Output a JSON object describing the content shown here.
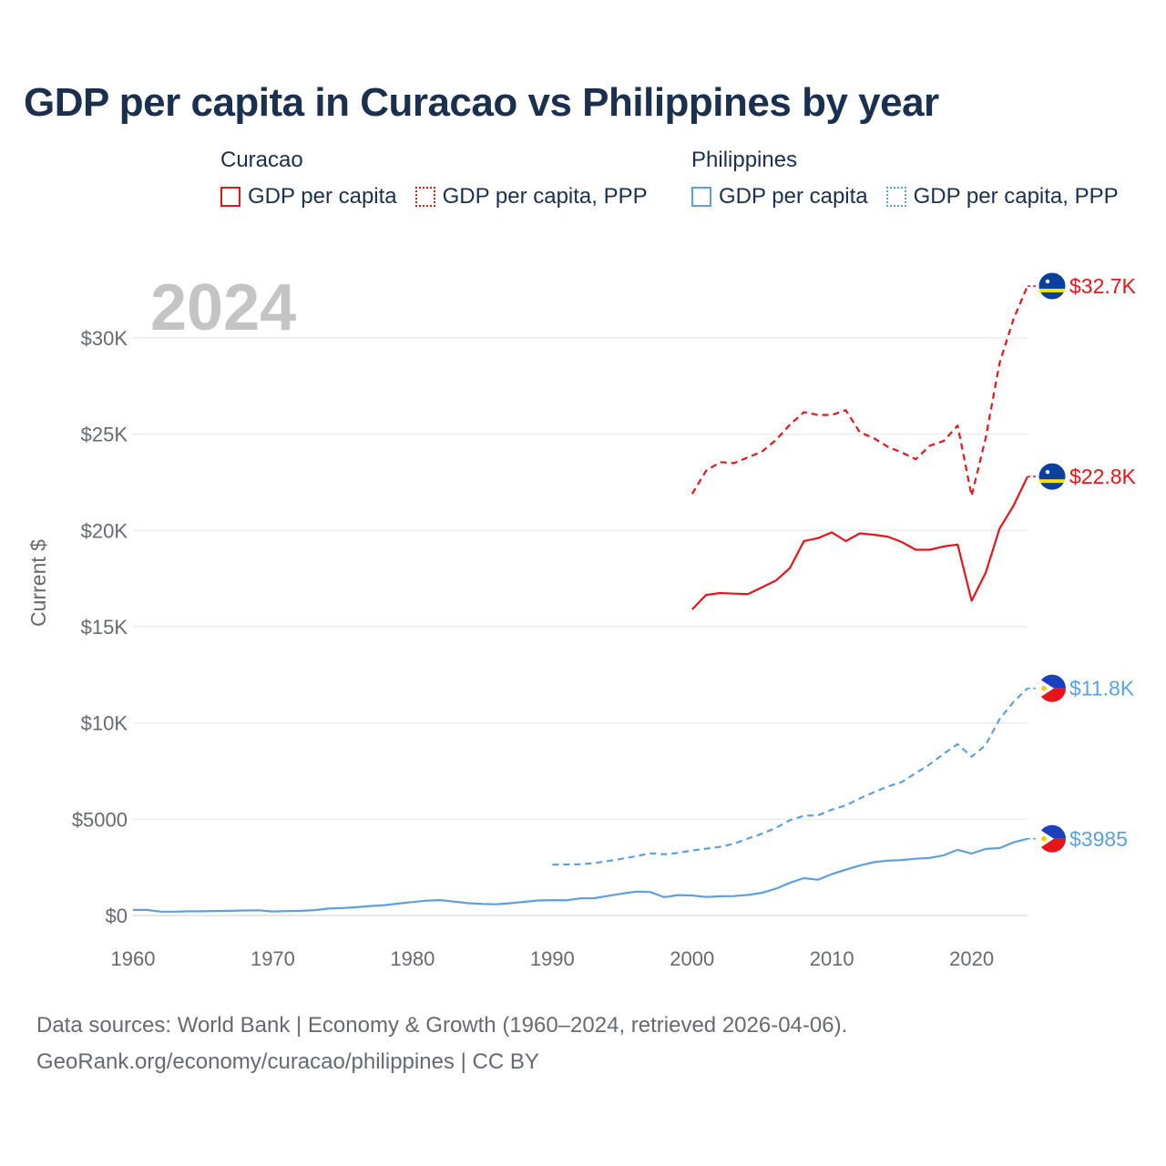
{
  "title": "GDP per capita in Curacao vs Philippines by year",
  "legend": {
    "groups": [
      {
        "name": "Curacao",
        "color": "#e8141b",
        "items": [
          {
            "label": "GDP per capita",
            "style": "solid"
          },
          {
            "label": "GDP per capita, PPP",
            "style": "dotted"
          }
        ]
      },
      {
        "name": "Philippines",
        "color": "#5da0e0",
        "items": [
          {
            "label": "GDP per capita",
            "style": "solid"
          },
          {
            "label": "GDP per capita, PPP",
            "style": "dotted"
          }
        ]
      }
    ]
  },
  "year_watermark": "2024",
  "source": {
    "line1": "Data sources: World Bank | Economy & Growth (1960–2024, retrieved 2026-04-06).",
    "line2": "GeoRank.org/economy/curacao/philippines | CC BY"
  },
  "chart_data": {
    "type": "line",
    "title": "GDP per capita in Curacao vs Philippines by year",
    "xlabel": "",
    "ylabel": "Current $",
    "xlim": [
      1960,
      2024
    ],
    "ylim": [
      0,
      33000
    ],
    "x_ticks": [
      1960,
      1970,
      1980,
      1990,
      2000,
      2010,
      2020
    ],
    "y_ticks": [
      {
        "value": 0,
        "label": "$0"
      },
      {
        "value": 5000,
        "label": "$5000"
      },
      {
        "value": 10000,
        "label": "$10K"
      },
      {
        "value": 15000,
        "label": "$15K"
      },
      {
        "value": 20000,
        "label": "$20K"
      },
      {
        "value": 25000,
        "label": "$25K"
      },
      {
        "value": 30000,
        "label": "$30K"
      }
    ],
    "grid": true,
    "series": [
      {
        "name": "Curacao GDP per capita, PPP",
        "country": "Curacao",
        "color": "#e8141b",
        "dash": "dashed",
        "end_label": "$32.7K",
        "points": [
          [
            2000,
            21900
          ],
          [
            2001,
            23100
          ],
          [
            2002,
            23550
          ],
          [
            2003,
            23500
          ],
          [
            2004,
            23800
          ],
          [
            2005,
            24100
          ],
          [
            2006,
            24700
          ],
          [
            2007,
            25500
          ],
          [
            2008,
            26150
          ],
          [
            2009,
            26000
          ],
          [
            2010,
            26000
          ],
          [
            2011,
            26250
          ],
          [
            2012,
            25100
          ],
          [
            2013,
            24800
          ],
          [
            2014,
            24350
          ],
          [
            2015,
            24050
          ],
          [
            2016,
            23700
          ],
          [
            2017,
            24400
          ],
          [
            2018,
            24650
          ],
          [
            2019,
            25450
          ],
          [
            2020,
            21800
          ],
          [
            2021,
            24800
          ],
          [
            2022,
            28700
          ],
          [
            2023,
            31000
          ],
          [
            2024,
            32700
          ]
        ]
      },
      {
        "name": "Curacao GDP per capita",
        "country": "Curacao",
        "color": "#e8141b",
        "dash": "solid",
        "end_label": "$22.8K",
        "points": [
          [
            2000,
            15900
          ],
          [
            2001,
            16650
          ],
          [
            2002,
            16750
          ],
          [
            2003,
            16720
          ],
          [
            2004,
            16700
          ],
          [
            2005,
            17050
          ],
          [
            2006,
            17400
          ],
          [
            2007,
            18050
          ],
          [
            2008,
            19450
          ],
          [
            2009,
            19600
          ],
          [
            2010,
            19900
          ],
          [
            2011,
            19450
          ],
          [
            2012,
            19850
          ],
          [
            2013,
            19780
          ],
          [
            2014,
            19680
          ],
          [
            2015,
            19400
          ],
          [
            2016,
            19000
          ],
          [
            2017,
            19000
          ],
          [
            2018,
            19170
          ],
          [
            2019,
            19270
          ],
          [
            2020,
            16350
          ],
          [
            2021,
            17800
          ],
          [
            2022,
            20100
          ],
          [
            2023,
            21300
          ],
          [
            2024,
            22800
          ]
        ]
      },
      {
        "name": "Philippines GDP per capita, PPP",
        "country": "Philippines",
        "color": "#5da0e0",
        "dash": "dashed",
        "end_label": "$11.8K",
        "points": [
          [
            1990,
            2640
          ],
          [
            1991,
            2650
          ],
          [
            1992,
            2660
          ],
          [
            1993,
            2720
          ],
          [
            1994,
            2830
          ],
          [
            1995,
            2950
          ],
          [
            1996,
            3080
          ],
          [
            1997,
            3230
          ],
          [
            1998,
            3180
          ],
          [
            1999,
            3250
          ],
          [
            2000,
            3380
          ],
          [
            2001,
            3470
          ],
          [
            2002,
            3570
          ],
          [
            2003,
            3730
          ],
          [
            2004,
            4000
          ],
          [
            2005,
            4250
          ],
          [
            2006,
            4550
          ],
          [
            2007,
            4950
          ],
          [
            2008,
            5180
          ],
          [
            2009,
            5200
          ],
          [
            2010,
            5500
          ],
          [
            2011,
            5720
          ],
          [
            2012,
            6080
          ],
          [
            2013,
            6400
          ],
          [
            2014,
            6700
          ],
          [
            2015,
            6930
          ],
          [
            2016,
            7400
          ],
          [
            2017,
            7850
          ],
          [
            2018,
            8400
          ],
          [
            2019,
            8900
          ],
          [
            2020,
            8250
          ],
          [
            2021,
            8850
          ],
          [
            2022,
            10200
          ],
          [
            2023,
            11100
          ],
          [
            2024,
            11800
          ]
        ]
      },
      {
        "name": "Philippines GDP per capita",
        "country": "Philippines",
        "color": "#5da0e0",
        "dash": "solid",
        "end_label": "$3985",
        "points": [
          [
            1960,
            290
          ],
          [
            1961,
            290
          ],
          [
            1962,
            200
          ],
          [
            1963,
            200
          ],
          [
            1964,
            220
          ],
          [
            1965,
            220
          ],
          [
            1966,
            230
          ],
          [
            1967,
            240
          ],
          [
            1968,
            260
          ],
          [
            1969,
            270
          ],
          [
            1970,
            210
          ],
          [
            1971,
            230
          ],
          [
            1972,
            240
          ],
          [
            1973,
            280
          ],
          [
            1974,
            360
          ],
          [
            1975,
            390
          ],
          [
            1976,
            430
          ],
          [
            1977,
            490
          ],
          [
            1978,
            540
          ],
          [
            1979,
            620
          ],
          [
            1980,
            700
          ],
          [
            1981,
            770
          ],
          [
            1982,
            800
          ],
          [
            1983,
            720
          ],
          [
            1984,
            640
          ],
          [
            1985,
            600
          ],
          [
            1986,
            580
          ],
          [
            1987,
            640
          ],
          [
            1988,
            710
          ],
          [
            1989,
            780
          ],
          [
            1990,
            800
          ],
          [
            1991,
            790
          ],
          [
            1992,
            890
          ],
          [
            1993,
            900
          ],
          [
            1994,
            1020
          ],
          [
            1995,
            1140
          ],
          [
            1996,
            1240
          ],
          [
            1997,
            1220
          ],
          [
            1998,
            950
          ],
          [
            1999,
            1060
          ],
          [
            2000,
            1040
          ],
          [
            2001,
            960
          ],
          [
            2002,
            1000
          ],
          [
            2003,
            1010
          ],
          [
            2004,
            1070
          ],
          [
            2005,
            1180
          ],
          [
            2006,
            1390
          ],
          [
            2007,
            1700
          ],
          [
            2008,
            1940
          ],
          [
            2009,
            1860
          ],
          [
            2010,
            2150
          ],
          [
            2011,
            2380
          ],
          [
            2012,
            2600
          ],
          [
            2013,
            2770
          ],
          [
            2014,
            2850
          ],
          [
            2015,
            2880
          ],
          [
            2016,
            2950
          ],
          [
            2017,
            2990
          ],
          [
            2018,
            3130
          ],
          [
            2019,
            3410
          ],
          [
            2020,
            3220
          ],
          [
            2021,
            3460
          ],
          [
            2022,
            3500
          ],
          [
            2023,
            3800
          ],
          [
            2024,
            3985
          ]
        ]
      }
    ]
  }
}
